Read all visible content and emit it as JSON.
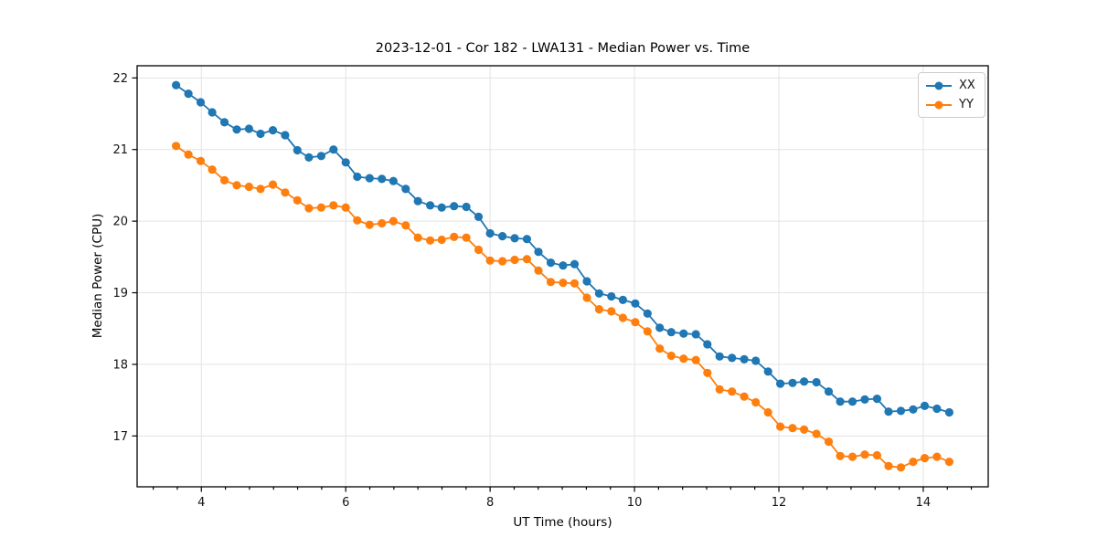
{
  "figure": {
    "title": "2023-12-01 - Cor 182 - LWA131 - Median Power vs. Time"
  },
  "chart_data": {
    "type": "line",
    "title": "2023-12-01 - Cor 182 - LWA131 - Median Power vs. Time",
    "xlabel": "UT Time (hours)",
    "ylabel": "Median Power (CPU)",
    "xlim": [
      3.11,
      14.9
    ],
    "ylim": [
      16.29,
      22.17
    ],
    "x_ticks": [
      4,
      6,
      8,
      10,
      12,
      14
    ],
    "y_ticks": [
      17,
      18,
      19,
      20,
      21,
      22
    ],
    "x_minor_step": 0.33333,
    "grid": true,
    "grid_color": "#e3e3e3",
    "frame_color": "#000000",
    "legend_position": "upper right",
    "x": [
      3.65,
      3.82,
      3.99,
      4.15,
      4.32,
      4.49,
      4.66,
      4.82,
      4.99,
      5.16,
      5.33,
      5.49,
      5.66,
      5.83,
      6.0,
      6.16,
      6.33,
      6.5,
      6.66,
      6.83,
      7.0,
      7.17,
      7.33,
      7.5,
      7.67,
      7.84,
      8.0,
      8.17,
      8.34,
      8.51,
      8.67,
      8.84,
      9.01,
      9.17,
      9.34,
      9.51,
      9.68,
      9.84,
      10.01,
      10.18,
      10.35,
      10.51,
      10.68,
      10.85,
      11.01,
      11.18,
      11.35,
      11.52,
      11.68,
      11.85,
      12.02,
      12.19,
      12.35,
      12.52,
      12.69,
      12.85,
      13.02,
      13.19,
      13.36,
      13.52,
      13.69,
      13.86,
      14.02,
      14.19,
      14.36
    ],
    "series": [
      {
        "name": "XX",
        "color": "#1f77b4",
        "values": [
          21.9,
          21.78,
          21.66,
          21.52,
          21.38,
          21.28,
          21.29,
          21.22,
          21.27,
          21.2,
          20.99,
          20.89,
          20.91,
          21.0,
          20.82,
          20.62,
          20.6,
          20.59,
          20.56,
          20.45,
          20.28,
          20.22,
          20.19,
          20.21,
          20.2,
          20.06,
          19.83,
          19.79,
          19.76,
          19.75,
          19.57,
          19.42,
          19.38,
          19.4,
          19.16,
          18.99,
          18.95,
          18.9,
          18.85,
          18.71,
          18.51,
          18.45,
          18.43,
          18.42,
          18.28,
          18.11,
          18.09,
          18.07,
          18.05,
          17.9,
          17.73,
          17.74,
          17.76,
          17.75,
          17.62,
          17.48,
          17.48,
          17.51,
          17.52,
          17.34,
          17.35,
          17.37,
          17.42,
          17.38,
          17.33
        ]
      },
      {
        "name": "YY",
        "color": "#ff7f0e",
        "values": [
          21.05,
          20.93,
          20.84,
          20.72,
          20.57,
          20.5,
          20.48,
          20.45,
          20.51,
          20.4,
          20.29,
          20.18,
          20.19,
          20.22,
          20.19,
          20.01,
          19.95,
          19.97,
          20.0,
          19.94,
          19.77,
          19.73,
          19.74,
          19.78,
          19.77,
          19.6,
          19.45,
          19.44,
          19.46,
          19.47,
          19.31,
          19.15,
          19.14,
          19.13,
          18.93,
          18.77,
          18.74,
          18.65,
          18.59,
          18.46,
          18.22,
          18.12,
          18.08,
          18.06,
          17.88,
          17.65,
          17.62,
          17.55,
          17.47,
          17.33,
          17.13,
          17.11,
          17.09,
          17.03,
          16.92,
          16.72,
          16.71,
          16.74,
          16.73,
          16.58,
          16.56,
          16.64,
          16.69,
          16.71,
          16.64
        ]
      }
    ]
  }
}
